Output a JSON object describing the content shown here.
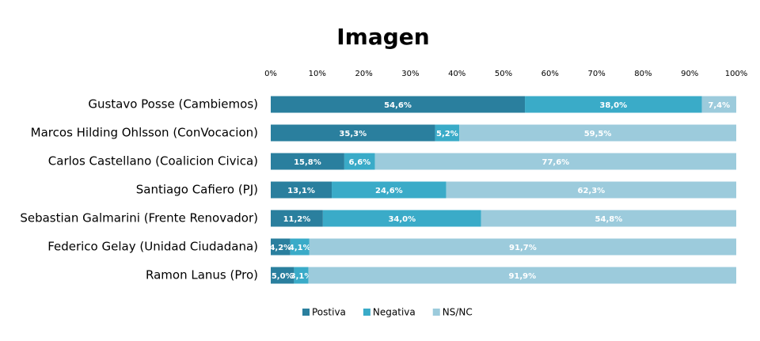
{
  "chart_data": {
    "type": "stacked-bar-horizontal",
    "title": "Imagen",
    "categories": [
      "Gustavo Posse (Cambiemos)",
      "Marcos Hilding Ohlsson (ConVocacion)",
      "Carlos Castellano (Coalicion Civica)",
      "Santiago Cafiero (PJ)",
      "Sebastian Galmarini (Frente Renovador)",
      "Federico Gelay (Unidad Ciudadana)",
      "Ramon Lanus (Pro)"
    ],
    "series": [
      {
        "name": "Postiva",
        "color": "#2a7f9e",
        "values": [
          54.6,
          35.3,
          15.8,
          13.1,
          11.2,
          4.2,
          5.0
        ],
        "value_labels": [
          "54,6%",
          "35,3%",
          "15,8%",
          "13,1%",
          "11,2%",
          "4,2%",
          "5,0%"
        ]
      },
      {
        "name": "Negativa",
        "color": "#3aabc8",
        "values": [
          38.0,
          5.2,
          6.6,
          24.6,
          34.0,
          4.1,
          3.1
        ],
        "value_labels": [
          "38,0%",
          "5,2%",
          "6,6%",
          "24,6%",
          "34,0%",
          "4,1%",
          "3,1%"
        ]
      },
      {
        "name": "NS/NC",
        "color": "#9ccbdc",
        "values": [
          7.4,
          59.5,
          77.6,
          62.3,
          54.8,
          91.7,
          91.9
        ],
        "value_labels": [
          "7,4%",
          "59,5%",
          "77,6%",
          "62,3%",
          "54,8%",
          "91,7%",
          "91,9%"
        ]
      }
    ],
    "xlim": [
      0,
      100
    ],
    "xticks": [
      {
        "value": 0,
        "label": "0%"
      },
      {
        "value": 10,
        "label": "10%"
      },
      {
        "value": 20,
        "label": "20%"
      },
      {
        "value": 30,
        "label": "30%"
      },
      {
        "value": 40,
        "label": "40%"
      },
      {
        "value": 50,
        "label": "50%"
      },
      {
        "value": 60,
        "label": "60%"
      },
      {
        "value": 70,
        "label": "70%"
      },
      {
        "value": 80,
        "label": "80%"
      },
      {
        "value": 90,
        "label": "90%"
      },
      {
        "value": 100,
        "label": "100%"
      }
    ],
    "legend": "bottom"
  }
}
